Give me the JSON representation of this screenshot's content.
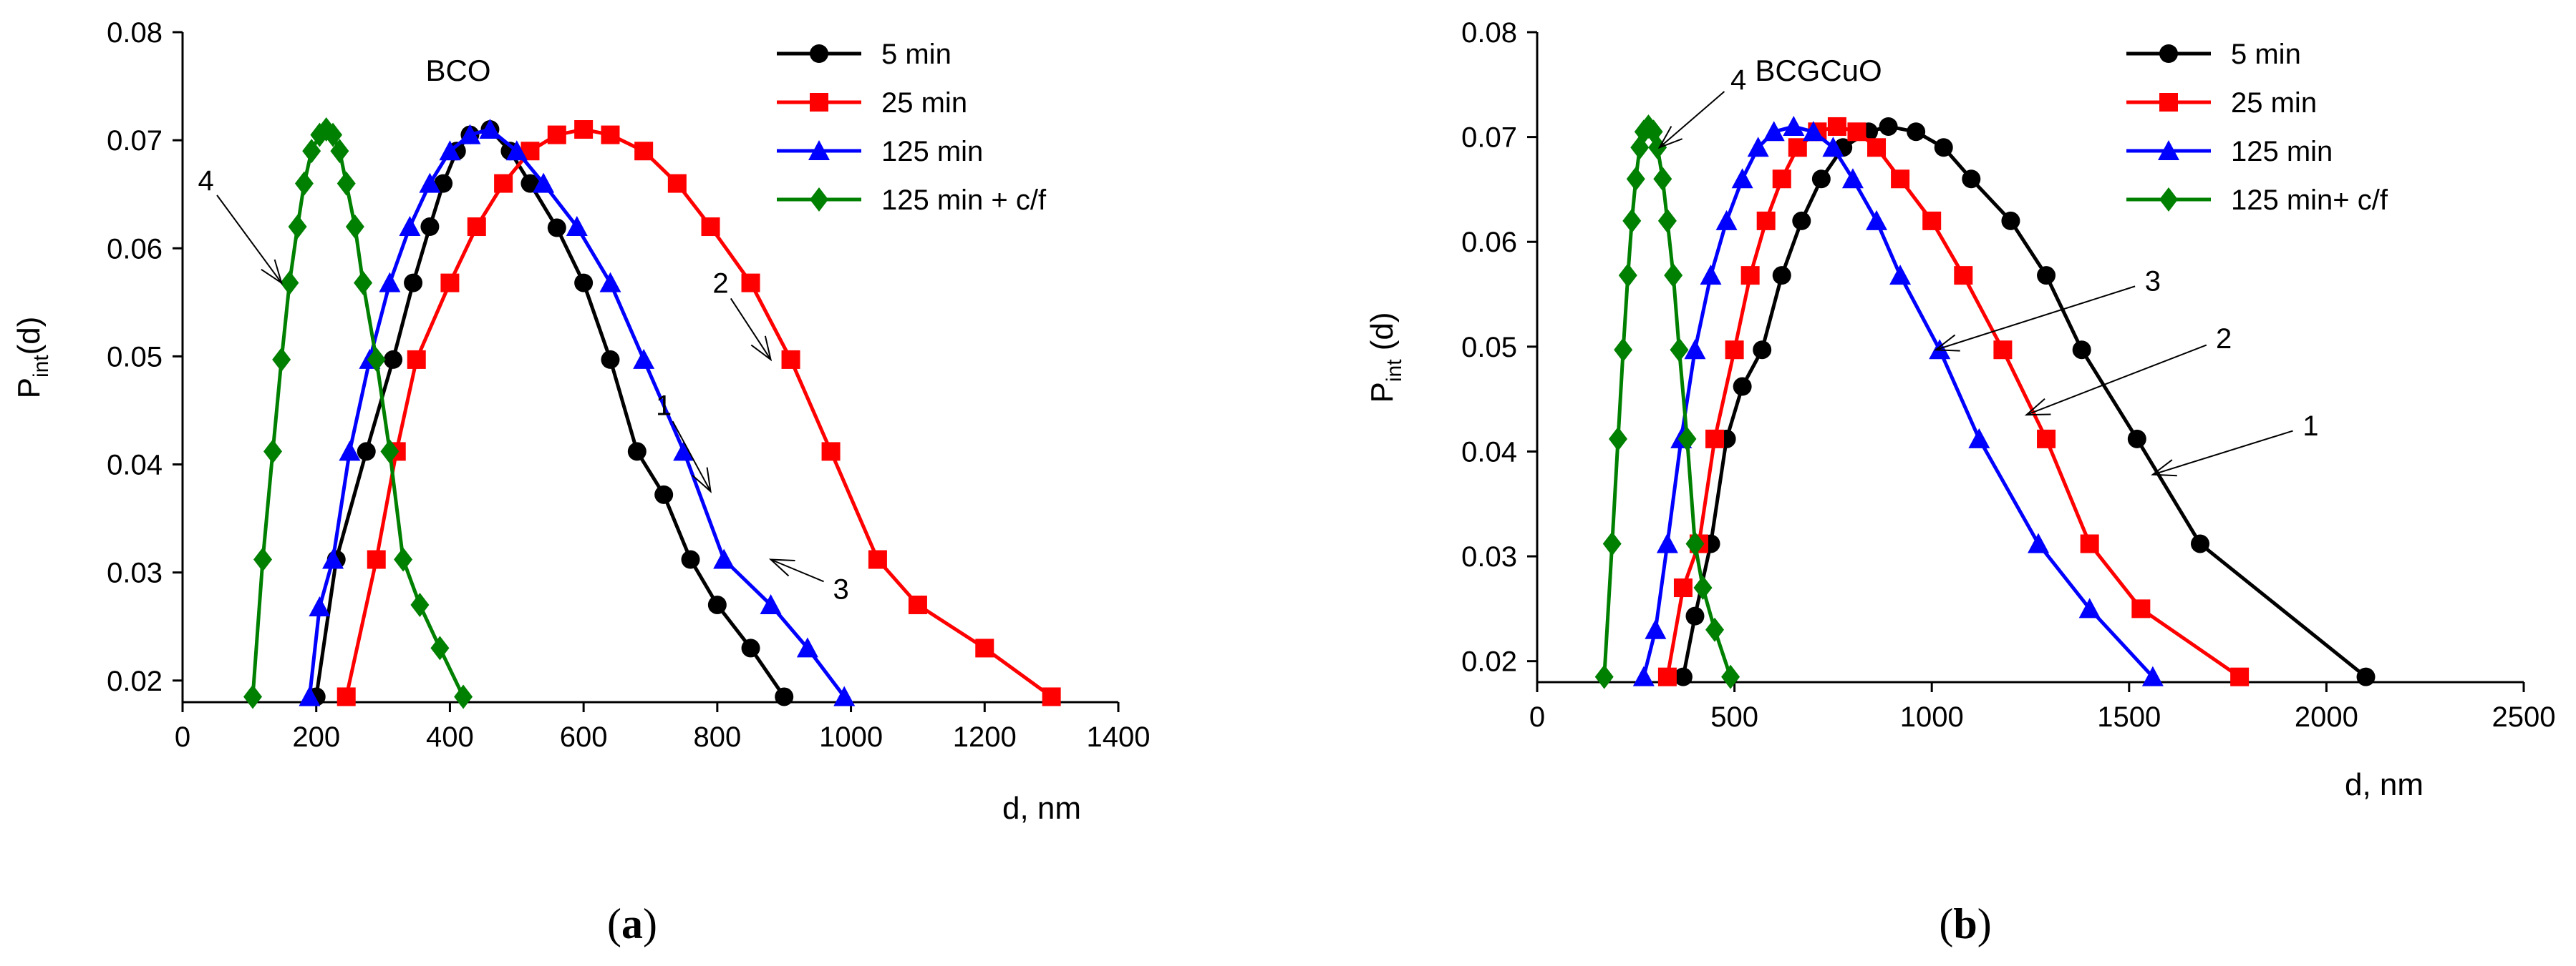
{
  "chart_data": [
    {
      "type": "line",
      "panel_label": "a",
      "title": "BCO",
      "xlabel": "d, nm",
      "ylabel_main": "P",
      "ylabel_sub": "int",
      "ylabel_tail": "(d)",
      "xlim": [
        0,
        1400
      ],
      "ylim": [
        0.018,
        0.08
      ],
      "xticks": [
        "0",
        "200",
        "400",
        "600",
        "800",
        "1000",
        "1200",
        "1400"
      ],
      "xtick_values": [
        0,
        200,
        400,
        600,
        800,
        1000,
        1200,
        1400
      ],
      "yticks": [
        "0.02",
        "0.03",
        "0.04",
        "0.05",
        "0.06",
        "0.07",
        "0.08"
      ],
      "ytick_values": [
        0.02,
        0.03,
        0.04,
        0.05,
        0.06,
        0.07,
        0.08
      ],
      "legend_position": "top-right",
      "series": [
        {
          "name": "5 min",
          "color": "#000000",
          "marker": "circle",
          "x": [
            200,
            230,
            275,
            315,
            345,
            370,
            390,
            410,
            430,
            460,
            490,
            520,
            560,
            600,
            640,
            680,
            720,
            760,
            800,
            850,
            900
          ],
          "y": [
            0.0185,
            0.0312,
            0.0412,
            0.0497,
            0.0568,
            0.062,
            0.066,
            0.069,
            0.0705,
            0.071,
            0.069,
            0.066,
            0.0619,
            0.0568,
            0.0497,
            0.0412,
            0.0372,
            0.0312,
            0.027,
            0.023,
            0.0185
          ]
        },
        {
          "name": "25 min",
          "color": "#ff0000",
          "marker": "square",
          "x": [
            245,
            290,
            320,
            350,
            400,
            440,
            480,
            520,
            560,
            600,
            640,
            690,
            740,
            790,
            850,
            910,
            970,
            1040,
            1100,
            1200,
            1300
          ],
          "y": [
            0.0185,
            0.0312,
            0.0412,
            0.0497,
            0.0568,
            0.062,
            0.066,
            0.069,
            0.0705,
            0.071,
            0.0705,
            0.069,
            0.066,
            0.062,
            0.0568,
            0.0497,
            0.0412,
            0.0312,
            0.027,
            0.023,
            0.0185
          ]
        },
        {
          "name": "125 min",
          "color": "#0000ff",
          "marker": "triangle",
          "x": [
            190,
            205,
            225,
            250,
            280,
            310,
            340,
            370,
            400,
            430,
            460,
            500,
            540,
            590,
            640,
            690,
            750,
            810,
            880,
            935,
            990
          ],
          "y": [
            0.0185,
            0.0268,
            0.0312,
            0.0412,
            0.0497,
            0.0568,
            0.062,
            0.066,
            0.069,
            0.0705,
            0.071,
            0.069,
            0.066,
            0.062,
            0.0568,
            0.0497,
            0.0412,
            0.0312,
            0.027,
            0.023,
            0.0185
          ]
        },
        {
          "name": "125 min + c/f",
          "color": "#008000",
          "marker": "diamond",
          "x": [
            105,
            120,
            135,
            148,
            160,
            172,
            182,
            193,
            205,
            215,
            225,
            235,
            245,
            258,
            270,
            290,
            310,
            330,
            355,
            385,
            420
          ],
          "y": [
            0.0185,
            0.0312,
            0.0412,
            0.0497,
            0.0568,
            0.062,
            0.066,
            0.069,
            0.0705,
            0.071,
            0.0705,
            0.069,
            0.066,
            0.062,
            0.0568,
            0.0497,
            0.0412,
            0.0312,
            0.027,
            0.023,
            0.0185
          ]
        }
      ],
      "annotations": [
        {
          "text": "1",
          "x": 720,
          "y": 0.0455,
          "x_tip": 790,
          "y_tip": 0.0375
        },
        {
          "text": "2",
          "x": 805,
          "y": 0.0568,
          "x_tip": 880,
          "y_tip": 0.0497
        },
        {
          "text": "3",
          "x": 985,
          "y": 0.0285,
          "x_tip": 880,
          "y_tip": 0.0312
        },
        {
          "text": "4",
          "x": 35,
          "y": 0.0663,
          "x_tip": 148,
          "y_tip": 0.0568
        }
      ]
    },
    {
      "type": "line",
      "panel_label": "b",
      "title": "BCGCuO",
      "xlabel": "d, nm",
      "ylabel_main": "P",
      "ylabel_sub": "int",
      "ylabel_tail": " (d)",
      "xlim": [
        0,
        2500
      ],
      "ylim": [
        0.018,
        0.08
      ],
      "xticks": [
        "0",
        "500",
        "1000",
        "1500",
        "2000",
        "2500"
      ],
      "xtick_values": [
        0,
        500,
        1000,
        1500,
        2000,
        2500
      ],
      "yticks": [
        "0.02",
        "0.03",
        "0.04",
        "0.05",
        "0.06",
        "0.07",
        "0.08"
      ],
      "ytick_values": [
        0.02,
        0.03,
        0.04,
        0.05,
        0.06,
        0.07,
        0.08
      ],
      "legend_position": "top-right",
      "series": [
        {
          "name": "5 min",
          "color": "#000000",
          "marker": "circle",
          "x": [
            370,
            400,
            440,
            480,
            520,
            570,
            620,
            670,
            720,
            775,
            840,
            890,
            960,
            1030,
            1100,
            1200,
            1290,
            1380,
            1520,
            1680,
            2100
          ],
          "y": [
            0.0185,
            0.0243,
            0.0312,
            0.0412,
            0.0462,
            0.0497,
            0.0568,
            0.062,
            0.066,
            0.069,
            0.0705,
            0.071,
            0.0705,
            0.069,
            0.066,
            0.062,
            0.0568,
            0.0497,
            0.0412,
            0.0312,
            0.0185
          ]
        },
        {
          "name": "25 min",
          "color": "#ff0000",
          "marker": "square",
          "x": [
            330,
            370,
            410,
            450,
            500,
            540,
            580,
            620,
            660,
            710,
            760,
            810,
            860,
            920,
            1000,
            1080,
            1180,
            1290,
            1400,
            1530,
            1780
          ],
          "y": [
            0.0185,
            0.027,
            0.0312,
            0.0412,
            0.0497,
            0.0568,
            0.062,
            0.066,
            0.069,
            0.0705,
            0.071,
            0.0705,
            0.069,
            0.066,
            0.062,
            0.0568,
            0.0497,
            0.0412,
            0.0312,
            0.025,
            0.0185
          ]
        },
        {
          "name": "125 min",
          "color": "#0000ff",
          "marker": "triangle",
          "x": [
            270,
            300,
            330,
            365,
            400,
            440,
            480,
            520,
            560,
            600,
            650,
            700,
            750,
            800,
            860,
            920,
            1020,
            1120,
            1270,
            1400,
            1560
          ],
          "y": [
            0.0185,
            0.023,
            0.0312,
            0.0412,
            0.0497,
            0.0568,
            0.062,
            0.066,
            0.069,
            0.0705,
            0.071,
            0.0705,
            0.069,
            0.066,
            0.062,
            0.0568,
            0.0497,
            0.0412,
            0.0312,
            0.025,
            0.0185
          ]
        },
        {
          "name": "125 min+ c/f",
          "color": "#008000",
          "marker": "diamond",
          "x": [
            170,
            190,
            205,
            218,
            230,
            240,
            250,
            260,
            270,
            282,
            295,
            305,
            318,
            330,
            345,
            360,
            380,
            400,
            420,
            450,
            490
          ],
          "y": [
            0.0185,
            0.0312,
            0.0412,
            0.0497,
            0.0568,
            0.062,
            0.066,
            0.069,
            0.0705,
            0.071,
            0.0705,
            0.069,
            0.066,
            0.062,
            0.0568,
            0.0497,
            0.0412,
            0.0312,
            0.027,
            0.023,
            0.0185
          ]
        }
      ],
      "annotations": [
        {
          "text": "1",
          "x": 1960,
          "y": 0.0425,
          "x_tip": 1560,
          "y_tip": 0.0378
        },
        {
          "text": "2",
          "x": 1740,
          "y": 0.0508,
          "x_tip": 1240,
          "y_tip": 0.0435
        },
        {
          "text": "3",
          "x": 1560,
          "y": 0.0563,
          "x_tip": 1010,
          "y_tip": 0.0497
        },
        {
          "text": "4",
          "x": 510,
          "y": 0.0755,
          "x_tip": 310,
          "y_tip": 0.069
        }
      ]
    }
  ]
}
